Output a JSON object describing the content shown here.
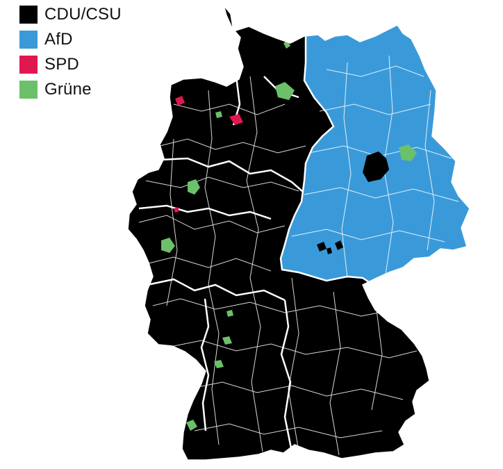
{
  "legend": {
    "items": [
      {
        "label": "CDU/CSU",
        "color": "#000000"
      },
      {
        "label": "AfD",
        "color": "#3a9ad9"
      },
      {
        "label": "SPD",
        "color": "#e0184f"
      },
      {
        "label": "Grüne",
        "color": "#6cc06a"
      }
    ]
  },
  "colors": {
    "background": "#ffffff",
    "borders": "#ffffff",
    "cdu_csu": "#000000",
    "afd": "#3a9ad9",
    "spd": "#e0184f",
    "gruene": "#6cc06a"
  }
}
